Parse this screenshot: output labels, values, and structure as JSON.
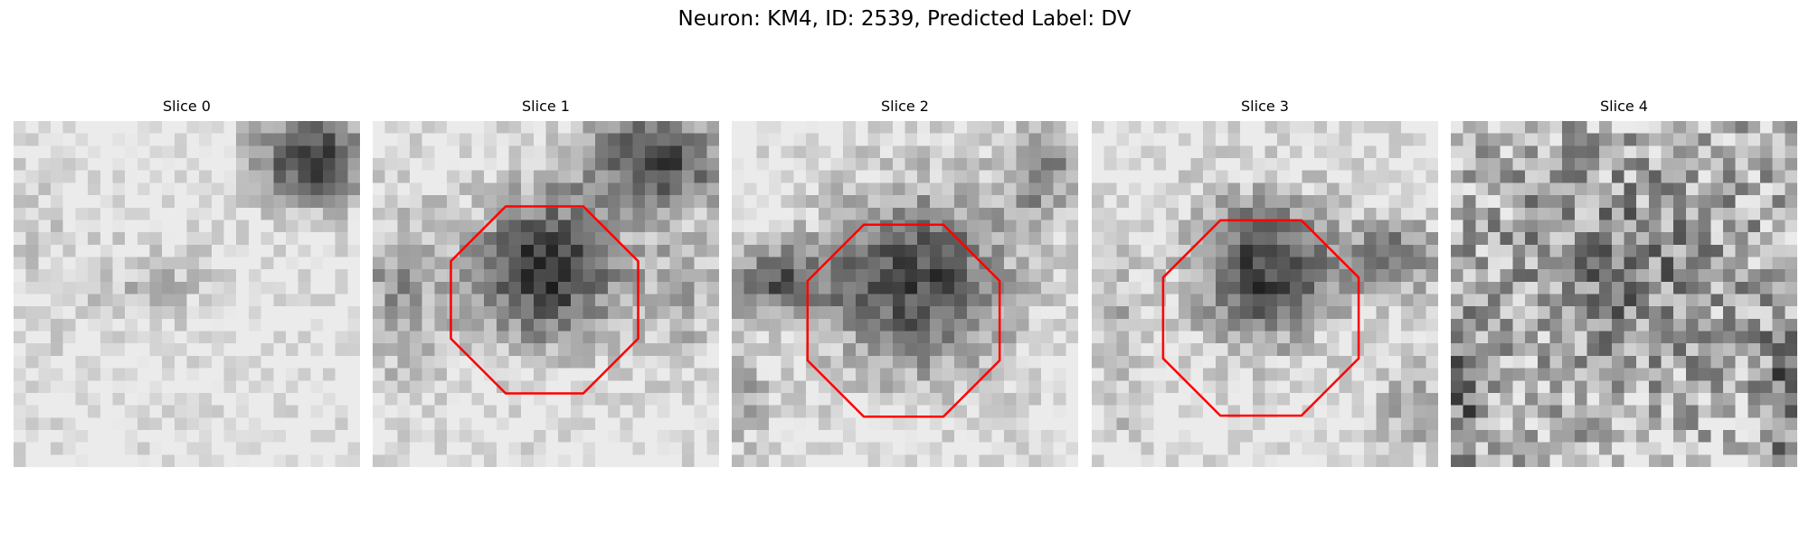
{
  "figure": {
    "title": "Neuron: KM4, ID: 2539, Predicted Label: DV"
  },
  "outline_color": "#ff0000",
  "panels": [
    {
      "title": "Slice 0",
      "has_outline": false
    },
    {
      "title": "Slice 1",
      "has_outline": true
    },
    {
      "title": "Slice 2",
      "has_outline": true
    },
    {
      "title": "Slice 3",
      "has_outline": true
    },
    {
      "title": "Slice 4",
      "has_outline": false
    }
  ]
}
